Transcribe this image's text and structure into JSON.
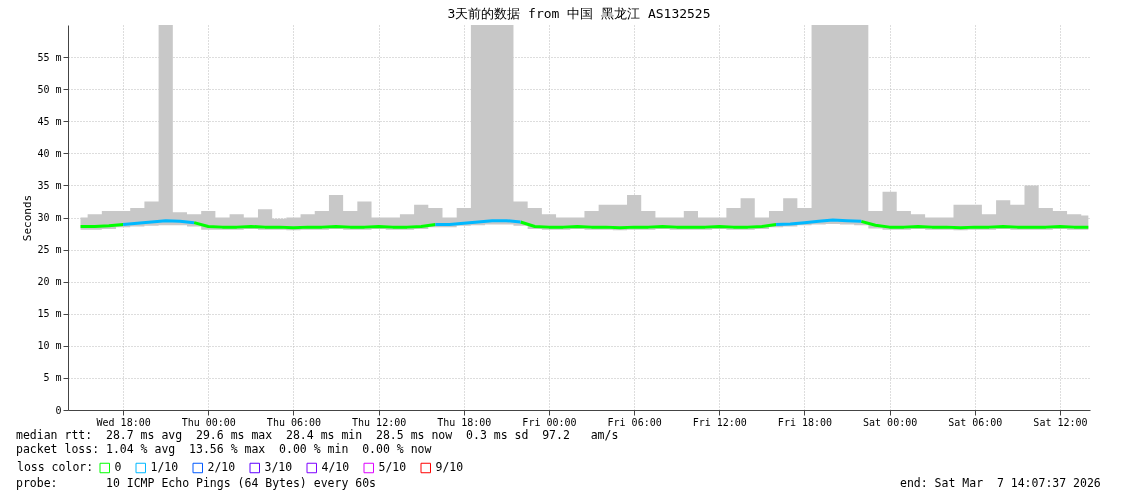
{
  "chart_data": {
    "type": "line",
    "title": "3天前的数据 from 中国 黑龙江 AS132525",
    "ylabel": "Seconds",
    "legend_title": "loss color:",
    "legend": "bottom",
    "grid": true,
    "x": [
      "2026-03-04T15:00",
      "2026-03-04T16:00",
      "2026-03-04T17:00",
      "2026-03-04T18:00",
      "2026-03-04T19:00",
      "2026-03-04T20:00",
      "2026-03-04T21:00",
      "2026-03-04T22:00",
      "2026-03-04T23:00",
      "2026-03-05T00:00",
      "2026-03-05T01:00",
      "2026-03-05T02:00",
      "2026-03-05T03:00",
      "2026-03-05T04:00",
      "2026-03-05T05:00",
      "2026-03-05T06:00",
      "2026-03-05T07:00",
      "2026-03-05T08:00",
      "2026-03-05T09:00",
      "2026-03-05T10:00",
      "2026-03-05T11:00",
      "2026-03-05T12:00",
      "2026-03-05T13:00",
      "2026-03-05T14:00",
      "2026-03-05T15:00",
      "2026-03-05T16:00",
      "2026-03-05T17:00",
      "2026-03-05T18:00",
      "2026-03-05T19:00",
      "2026-03-05T20:00",
      "2026-03-05T21:00",
      "2026-03-05T22:00",
      "2026-03-05T23:00",
      "2026-03-06T00:00",
      "2026-03-06T01:00",
      "2026-03-06T02:00",
      "2026-03-06T03:00",
      "2026-03-06T04:00",
      "2026-03-06T05:00",
      "2026-03-06T06:00",
      "2026-03-06T07:00",
      "2026-03-06T08:00",
      "2026-03-06T09:00",
      "2026-03-06T10:00",
      "2026-03-06T11:00",
      "2026-03-06T12:00",
      "2026-03-06T13:00",
      "2026-03-06T14:00",
      "2026-03-06T15:00",
      "2026-03-06T16:00",
      "2026-03-06T17:00",
      "2026-03-06T18:00",
      "2026-03-06T19:00",
      "2026-03-06T20:00",
      "2026-03-06T21:00",
      "2026-03-06T22:00",
      "2026-03-06T23:00",
      "2026-03-07T00:00",
      "2026-03-07T01:00",
      "2026-03-07T02:00",
      "2026-03-07T03:00",
      "2026-03-07T04:00",
      "2026-03-07T05:00",
      "2026-03-07T06:00",
      "2026-03-07T07:00",
      "2026-03-07T08:00",
      "2026-03-07T09:00",
      "2026-03-07T10:00",
      "2026-03-07T11:00",
      "2026-03-07T12:00",
      "2026-03-07T13:00",
      "2026-03-07T14:00"
    ],
    "xlim": [
      "2026-03-04T14:07",
      "2026-03-07T14:07"
    ],
    "xticks": [
      {
        "value": "2026-03-04T18:00",
        "label": "Wed 18:00"
      },
      {
        "value": "2026-03-05T00:00",
        "label": "Thu 00:00"
      },
      {
        "value": "2026-03-05T06:00",
        "label": "Thu 06:00"
      },
      {
        "value": "2026-03-05T12:00",
        "label": "Thu 12:00"
      },
      {
        "value": "2026-03-05T18:00",
        "label": "Thu 18:00"
      },
      {
        "value": "2026-03-06T00:00",
        "label": "Fri 00:00"
      },
      {
        "value": "2026-03-06T06:00",
        "label": "Fri 06:00"
      },
      {
        "value": "2026-03-06T12:00",
        "label": "Fri 12:00"
      },
      {
        "value": "2026-03-06T18:00",
        "label": "Fri 18:00"
      },
      {
        "value": "2026-03-07T00:00",
        "label": "Sat 00:00"
      },
      {
        "value": "2026-03-07T06:00",
        "label": "Sat 06:00"
      },
      {
        "value": "2026-03-07T12:00",
        "label": "Sat 12:00"
      }
    ],
    "ylim": [
      0,
      60
    ],
    "yticks": [
      0,
      {
        "value": 5,
        "label": "5 m"
      },
      {
        "value": 10,
        "label": "10 m"
      },
      {
        "value": 15,
        "label": "15 m"
      },
      {
        "value": 20,
        "label": "20 m"
      },
      {
        "value": 25,
        "label": "25 m"
      },
      {
        "value": 30,
        "label": "30 m"
      },
      {
        "value": 35,
        "label": "35 m"
      },
      {
        "value": 40,
        "label": "40 m"
      },
      {
        "value": 45,
        "label": "45 m"
      },
      {
        "value": 50,
        "label": "50 m"
      },
      {
        "value": 55,
        "label": "55 m"
      }
    ],
    "series": [
      {
        "name": "0",
        "color": "#00ff00",
        "values": [
          28.6,
          28.6,
          28.7,
          28.9,
          null,
          null,
          null,
          null,
          29.2,
          28.6,
          28.5,
          28.5,
          28.6,
          28.5,
          28.5,
          28.4,
          28.5,
          28.5,
          28.6,
          28.5,
          28.5,
          28.6,
          28.5,
          28.5,
          28.6,
          28.9,
          null,
          null,
          null,
          null,
          null,
          29.3,
          28.6,
          28.5,
          28.5,
          28.6,
          28.5,
          28.5,
          28.4,
          28.5,
          28.5,
          28.6,
          28.5,
          28.5,
          28.5,
          28.6,
          28.5,
          28.5,
          28.6,
          28.9,
          null,
          null,
          null,
          null,
          null,
          29.4,
          28.8,
          28.5,
          28.5,
          28.6,
          28.5,
          28.5,
          28.4,
          28.5,
          28.5,
          28.6,
          28.5,
          28.5,
          28.5,
          28.6,
          28.5,
          28.5
        ],
        "lower": [
          28.1,
          28.1,
          28.2,
          28.5,
          28.6,
          28.7,
          28.8,
          28.8,
          28.6,
          28.1,
          28.1,
          28.1,
          28.2,
          28.1,
          28.1,
          28.0,
          28.1,
          28.1,
          28.2,
          28.1,
          28.1,
          28.2,
          28.1,
          28.1,
          28.2,
          28.5,
          28.5,
          28.7,
          28.8,
          28.9,
          28.9,
          28.7,
          28.2,
          28.1,
          28.1,
          28.2,
          28.1,
          28.1,
          28.0,
          28.1,
          28.1,
          28.2,
          28.1,
          28.1,
          28.1,
          28.2,
          28.1,
          28.1,
          28.2,
          28.5,
          28.6,
          28.8,
          28.9,
          29.0,
          28.9,
          28.8,
          28.3,
          28.1,
          28.1,
          28.2,
          28.1,
          28.1,
          28.0,
          28.1,
          28.1,
          28.2,
          28.1,
          28.1,
          28.1,
          28.2,
          28.1,
          28.1
        ],
        "upper": [
          30,
          30.5,
          31,
          31,
          31.5,
          32.5,
          60,
          30.8,
          30.5,
          31,
          30,
          30.5,
          30,
          31.3,
          29.8,
          30,
          30.5,
          31,
          33.5,
          31,
          32.5,
          30,
          30,
          30.5,
          32,
          31.5,
          30,
          31.5,
          60,
          60,
          60,
          32.5,
          31.5,
          30.5,
          30,
          30,
          31,
          32,
          32,
          33.5,
          31,
          30,
          30,
          31,
          30,
          30,
          31.5,
          33,
          30,
          31,
          33,
          31.5,
          60,
          60,
          60,
          60,
          31,
          34,
          31,
          30.5,
          30,
          30,
          32,
          32,
          30.5,
          32.7,
          32,
          35,
          31.5,
          31,
          30.5,
          30.3
        ]
      },
      {
        "name": "1/10",
        "color": "#00b8ff",
        "values": [
          null,
          null,
          null,
          28.9,
          29.1,
          29.3,
          29.5,
          29.4,
          29.2,
          null,
          null,
          null,
          null,
          null,
          null,
          null,
          null,
          null,
          null,
          null,
          null,
          null,
          null,
          null,
          null,
          28.9,
          28.9,
          29.1,
          29.3,
          29.5,
          29.5,
          29.3,
          null,
          null,
          null,
          null,
          null,
          null,
          null,
          null,
          null,
          null,
          null,
          null,
          null,
          null,
          null,
          null,
          null,
          28.9,
          29.0,
          29.2,
          29.4,
          29.6,
          29.5,
          29.4,
          null,
          null,
          null,
          null,
          null,
          null,
          null,
          null,
          null,
          null,
          null,
          null,
          null,
          null,
          null,
          null
        ]
      },
      {
        "name": "2/10",
        "color": "#0059ff",
        "values": [
          null,
          null,
          null,
          null,
          null,
          null,
          null,
          null,
          null,
          null,
          null,
          null,
          null,
          null,
          null,
          null,
          null,
          null,
          null,
          null,
          null,
          null,
          null,
          null,
          null,
          null,
          null,
          null,
          null,
          null,
          null,
          null,
          null,
          null,
          null,
          null,
          null,
          null,
          null,
          null,
          null,
          null,
          null,
          null,
          null,
          null,
          null,
          null,
          null,
          null,
          null,
          null,
          null,
          null,
          null,
          null,
          null,
          null,
          null,
          null,
          null,
          null,
          null,
          null,
          null,
          null,
          null,
          null,
          null,
          null,
          null,
          null
        ]
      },
      {
        "name": "3/10",
        "color": "#5e00ff",
        "values": [
          null,
          null,
          null,
          null,
          null,
          null,
          null,
          null,
          null,
          null,
          null,
          null,
          null,
          null,
          null,
          null,
          null,
          null,
          null,
          null,
          null,
          null,
          null,
          null,
          null,
          null,
          null,
          null,
          null,
          null,
          null,
          null,
          null,
          null,
          null,
          null,
          null,
          null,
          null,
          null,
          null,
          null,
          null,
          null,
          null,
          null,
          null,
          null,
          null,
          null,
          null,
          null,
          null,
          null,
          null,
          null,
          null,
          null,
          null,
          null,
          null,
          null,
          null,
          null,
          null,
          null,
          null,
          null,
          null,
          null,
          null,
          null
        ]
      },
      {
        "name": "4/10",
        "color": "#7e00ff",
        "values": [
          null,
          null,
          null,
          null,
          null,
          null,
          null,
          null,
          null,
          null,
          null,
          null,
          null,
          null,
          null,
          null,
          null,
          null,
          null,
          null,
          null,
          null,
          null,
          null,
          null,
          null,
          null,
          null,
          null,
          null,
          null,
          null,
          null,
          null,
          null,
          null,
          null,
          null,
          null,
          null,
          null,
          null,
          null,
          null,
          null,
          null,
          null,
          null,
          null,
          null,
          null,
          null,
          null,
          null,
          null,
          null,
          null,
          null,
          null,
          null,
          null,
          null,
          null,
          null,
          null,
          null,
          null,
          null,
          null,
          null,
          null,
          null
        ]
      },
      {
        "name": "5/10",
        "color": "#dd00ff",
        "values": [
          null,
          null,
          null,
          null,
          null,
          null,
          null,
          null,
          null,
          null,
          null,
          null,
          null,
          null,
          null,
          null,
          null,
          null,
          null,
          null,
          null,
          null,
          null,
          null,
          null,
          null,
          null,
          null,
          null,
          null,
          null,
          null,
          null,
          null,
          null,
          null,
          null,
          null,
          null,
          null,
          null,
          null,
          null,
          null,
          null,
          null,
          null,
          null,
          null,
          null,
          null,
          null,
          null,
          null,
          null,
          null,
          null,
          null,
          null,
          null,
          null,
          null,
          null,
          null,
          null,
          null,
          null,
          null,
          null,
          null,
          null,
          null
        ]
      },
      {
        "name": "9/10",
        "color": "#ff0000",
        "values": [
          null,
          null,
          null,
          null,
          null,
          null,
          null,
          null,
          null,
          null,
          null,
          null,
          null,
          null,
          null,
          null,
          null,
          null,
          null,
          null,
          null,
          null,
          null,
          null,
          null,
          null,
          null,
          null,
          null,
          null,
          null,
          null,
          null,
          null,
          null,
          null,
          null,
          null,
          null,
          null,
          null,
          null,
          null,
          null,
          null,
          null,
          null,
          null,
          null,
          null,
          null,
          null,
          null,
          null,
          null,
          null,
          null,
          null,
          null,
          null,
          null,
          null,
          null,
          null,
          null,
          null,
          null,
          null,
          null,
          null,
          null,
          null
        ]
      }
    ],
    "annotations": [
      "median rtt:  28.7 ms avg  29.6 ms max  28.4 ms min  28.5 ms now  0.3 ms sd  97.2   am/s",
      "packet loss: 1.04 % avg  13.56 % max  0.00 % min  0.00 % now",
      "probe:       10 ICMP Echo Pings (64 Bytes) every 60s",
      "end: Sat Mar  7 14:07:37 2026"
    ]
  }
}
